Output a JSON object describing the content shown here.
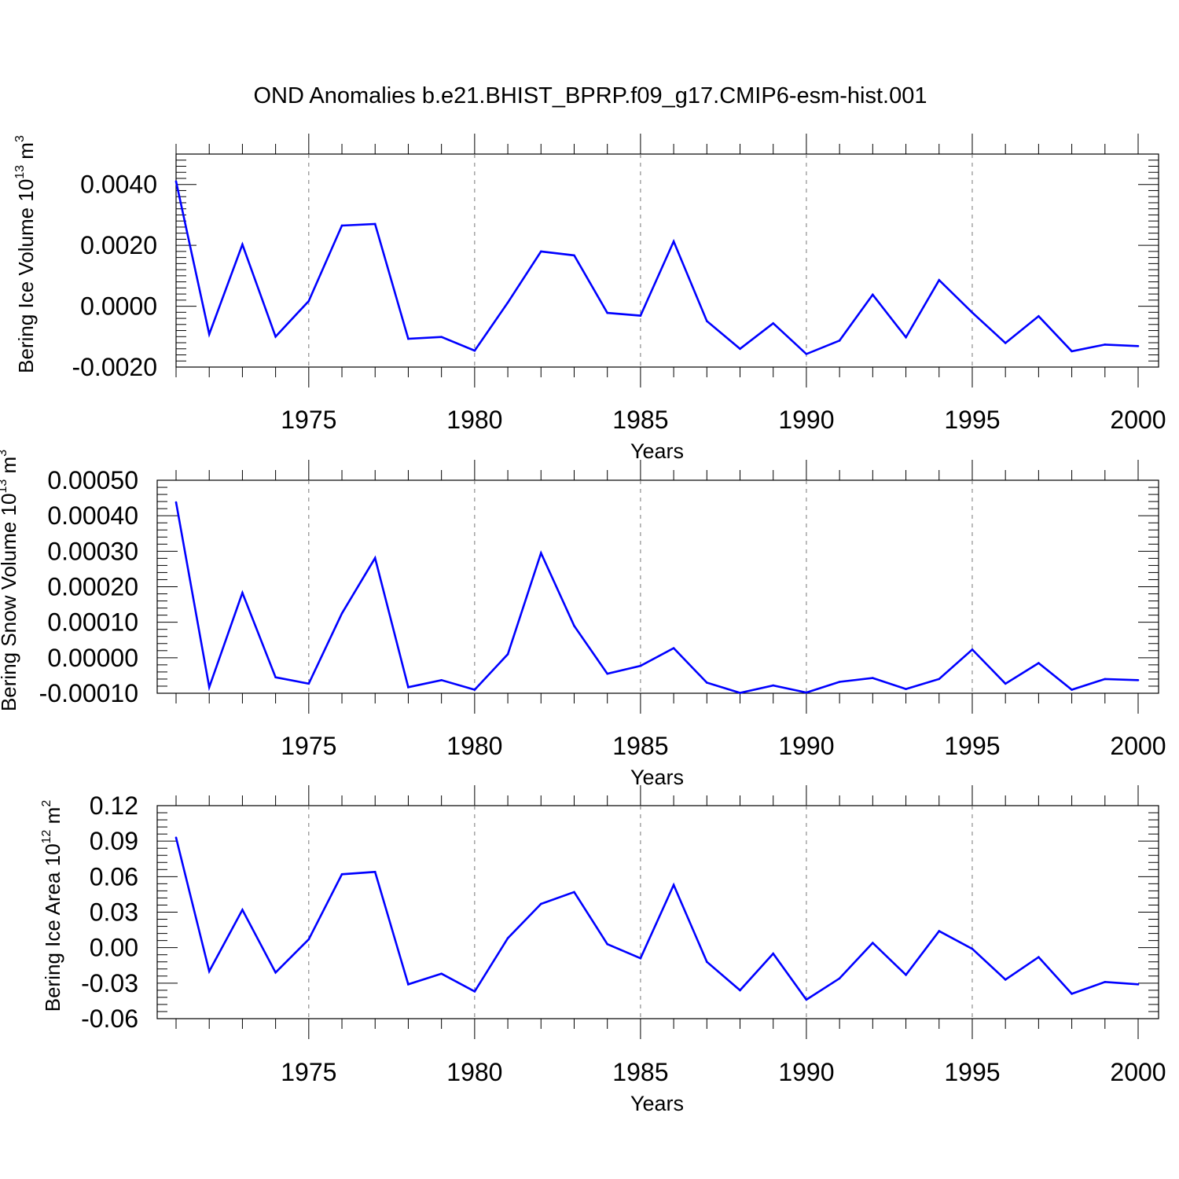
{
  "title": "OND Anomalies b.e21.BHIST_BPRP.f09_g17.CMIP6-esm-hist.001",
  "colors": {
    "line": "#0000ff",
    "axis": "#000000",
    "grid": "#777777",
    "background": "#ffffff"
  },
  "chart_data": [
    {
      "type": "line",
      "ylabel": {
        "text": "Bering Ice Volume 10",
        "exponent": "13",
        "unit": "m",
        "unit_exponent": "3"
      },
      "xlabel": "Years",
      "xlim": [
        1971,
        2000
      ],
      "ylim": [
        -0.002,
        0.005
      ],
      "yticks": [
        -0.002,
        0.0,
        0.002,
        0.004
      ],
      "ytick_labels": [
        "-0.0020",
        "0.0000",
        "0.0020",
        "0.0040"
      ],
      "yminor_step": 0.0002,
      "xticks": [
        1975,
        1980,
        1985,
        1990,
        1995,
        2000
      ],
      "xtick_labels": [
        "1975",
        "1980",
        "1985",
        "1990",
        "1995",
        "2000"
      ],
      "grid": "vertical dashed at major x ticks",
      "series": [
        {
          "name": "Bering Ice Volume",
          "x": [
            1971,
            1972,
            1973,
            1974,
            1975,
            1976,
            1977,
            1978,
            1979,
            1980,
            1981,
            1982,
            1983,
            1984,
            1985,
            1986,
            1987,
            1988,
            1989,
            1990,
            1991,
            1992,
            1993,
            1994,
            1995,
            1996,
            1997,
            1998,
            1999,
            2000
          ],
          "values": [
            0.0041,
            -0.00092,
            0.00203,
            -0.001,
            0.00017,
            0.00265,
            0.0027,
            -0.00107,
            -0.00101,
            -0.00146,
            0.00012,
            0.0018,
            0.00167,
            -0.00022,
            -0.00031,
            0.00213,
            -0.00049,
            -0.0014,
            -0.00056,
            -0.00157,
            -0.00113,
            0.00038,
            -0.00102,
            0.00086,
            -0.00021,
            -0.00121,
            -0.00033,
            -0.00148,
            -0.00126,
            -0.00131
          ]
        }
      ]
    },
    {
      "type": "line",
      "ylabel": {
        "text": "Bering Snow Volume 10",
        "exponent": "13",
        "unit": "m",
        "unit_exponent": "3"
      },
      "xlabel": "Years",
      "xlim": [
        1971,
        2000
      ],
      "ylim": [
        -0.0001,
        0.0005
      ],
      "yticks": [
        -0.0001,
        0.0,
        0.0001,
        0.0002,
        0.0003,
        0.0004,
        0.0005
      ],
      "ytick_labels": [
        "-0.00010",
        "0.00000",
        "0.00010",
        "0.00020",
        "0.00030",
        "0.00040",
        "0.00050"
      ],
      "yminor_step": 2e-05,
      "xticks": [
        1975,
        1980,
        1985,
        1990,
        1995,
        2000
      ],
      "xtick_labels": [
        "1975",
        "1980",
        "1985",
        "1990",
        "1995",
        "2000"
      ],
      "grid": "vertical dashed at major x ticks",
      "series": [
        {
          "name": "Bering Snow Volume",
          "x": [
            1971,
            1972,
            1973,
            1974,
            1975,
            1976,
            1977,
            1978,
            1979,
            1980,
            1981,
            1982,
            1983,
            1984,
            1985,
            1986,
            1987,
            1988,
            1989,
            1990,
            1991,
            1992,
            1993,
            1994,
            1995,
            1996,
            1997,
            1998,
            1999,
            2000
          ],
          "values": [
            0.000438,
            -8.3e-05,
            0.000183,
            -5.5e-05,
            -7.3e-05,
            0.000125,
            0.000281,
            -8.3e-05,
            -6.3e-05,
            -9e-05,
            1e-05,
            0.000295,
            9e-05,
            -4.5e-05,
            -2.3e-05,
            2.7e-05,
            -7e-05,
            -9.9e-05,
            -7.8e-05,
            -9.8e-05,
            -6.8e-05,
            -5.7e-05,
            -8.8e-05,
            -6e-05,
            2.3e-05,
            -7.3e-05,
            -1.5e-05,
            -9e-05,
            -6e-05,
            -6.3e-05
          ]
        }
      ]
    },
    {
      "type": "line",
      "ylabel": {
        "text": "Bering Ice Area 10",
        "exponent": "12",
        "unit": "m",
        "unit_exponent": "2"
      },
      "xlabel": "Years",
      "xlim": [
        1971,
        2000
      ],
      "ylim": [
        -0.06,
        0.12
      ],
      "yticks": [
        -0.06,
        -0.03,
        0.0,
        0.03,
        0.06,
        0.09,
        0.12
      ],
      "ytick_labels": [
        "-0.06",
        "-0.03",
        "0.00",
        "0.03",
        "0.06",
        "0.09",
        "0.12"
      ],
      "yminor_step": 0.006,
      "xticks": [
        1975,
        1980,
        1985,
        1990,
        1995,
        2000
      ],
      "xtick_labels": [
        "1975",
        "1980",
        "1985",
        "1990",
        "1995",
        "2000"
      ],
      "grid": "vertical dashed at major x ticks",
      "series": [
        {
          "name": "Bering Ice Area",
          "x": [
            1971,
            1972,
            1973,
            1974,
            1975,
            1976,
            1977,
            1978,
            1979,
            1980,
            1981,
            1982,
            1983,
            1984,
            1985,
            1986,
            1987,
            1988,
            1989,
            1990,
            1991,
            1992,
            1993,
            1994,
            1995,
            1996,
            1997,
            1998,
            1999,
            2000
          ],
          "values": [
            0.093,
            -0.02,
            0.032,
            -0.021,
            0.007,
            0.062,
            0.064,
            -0.031,
            -0.022,
            -0.037,
            0.008,
            0.037,
            0.047,
            0.003,
            -0.009,
            0.053,
            -0.012,
            -0.036,
            -0.005,
            -0.044,
            -0.026,
            0.004,
            -0.023,
            0.014,
            -0.001,
            -0.027,
            -0.008,
            -0.039,
            -0.029,
            -0.031
          ]
        }
      ]
    }
  ]
}
